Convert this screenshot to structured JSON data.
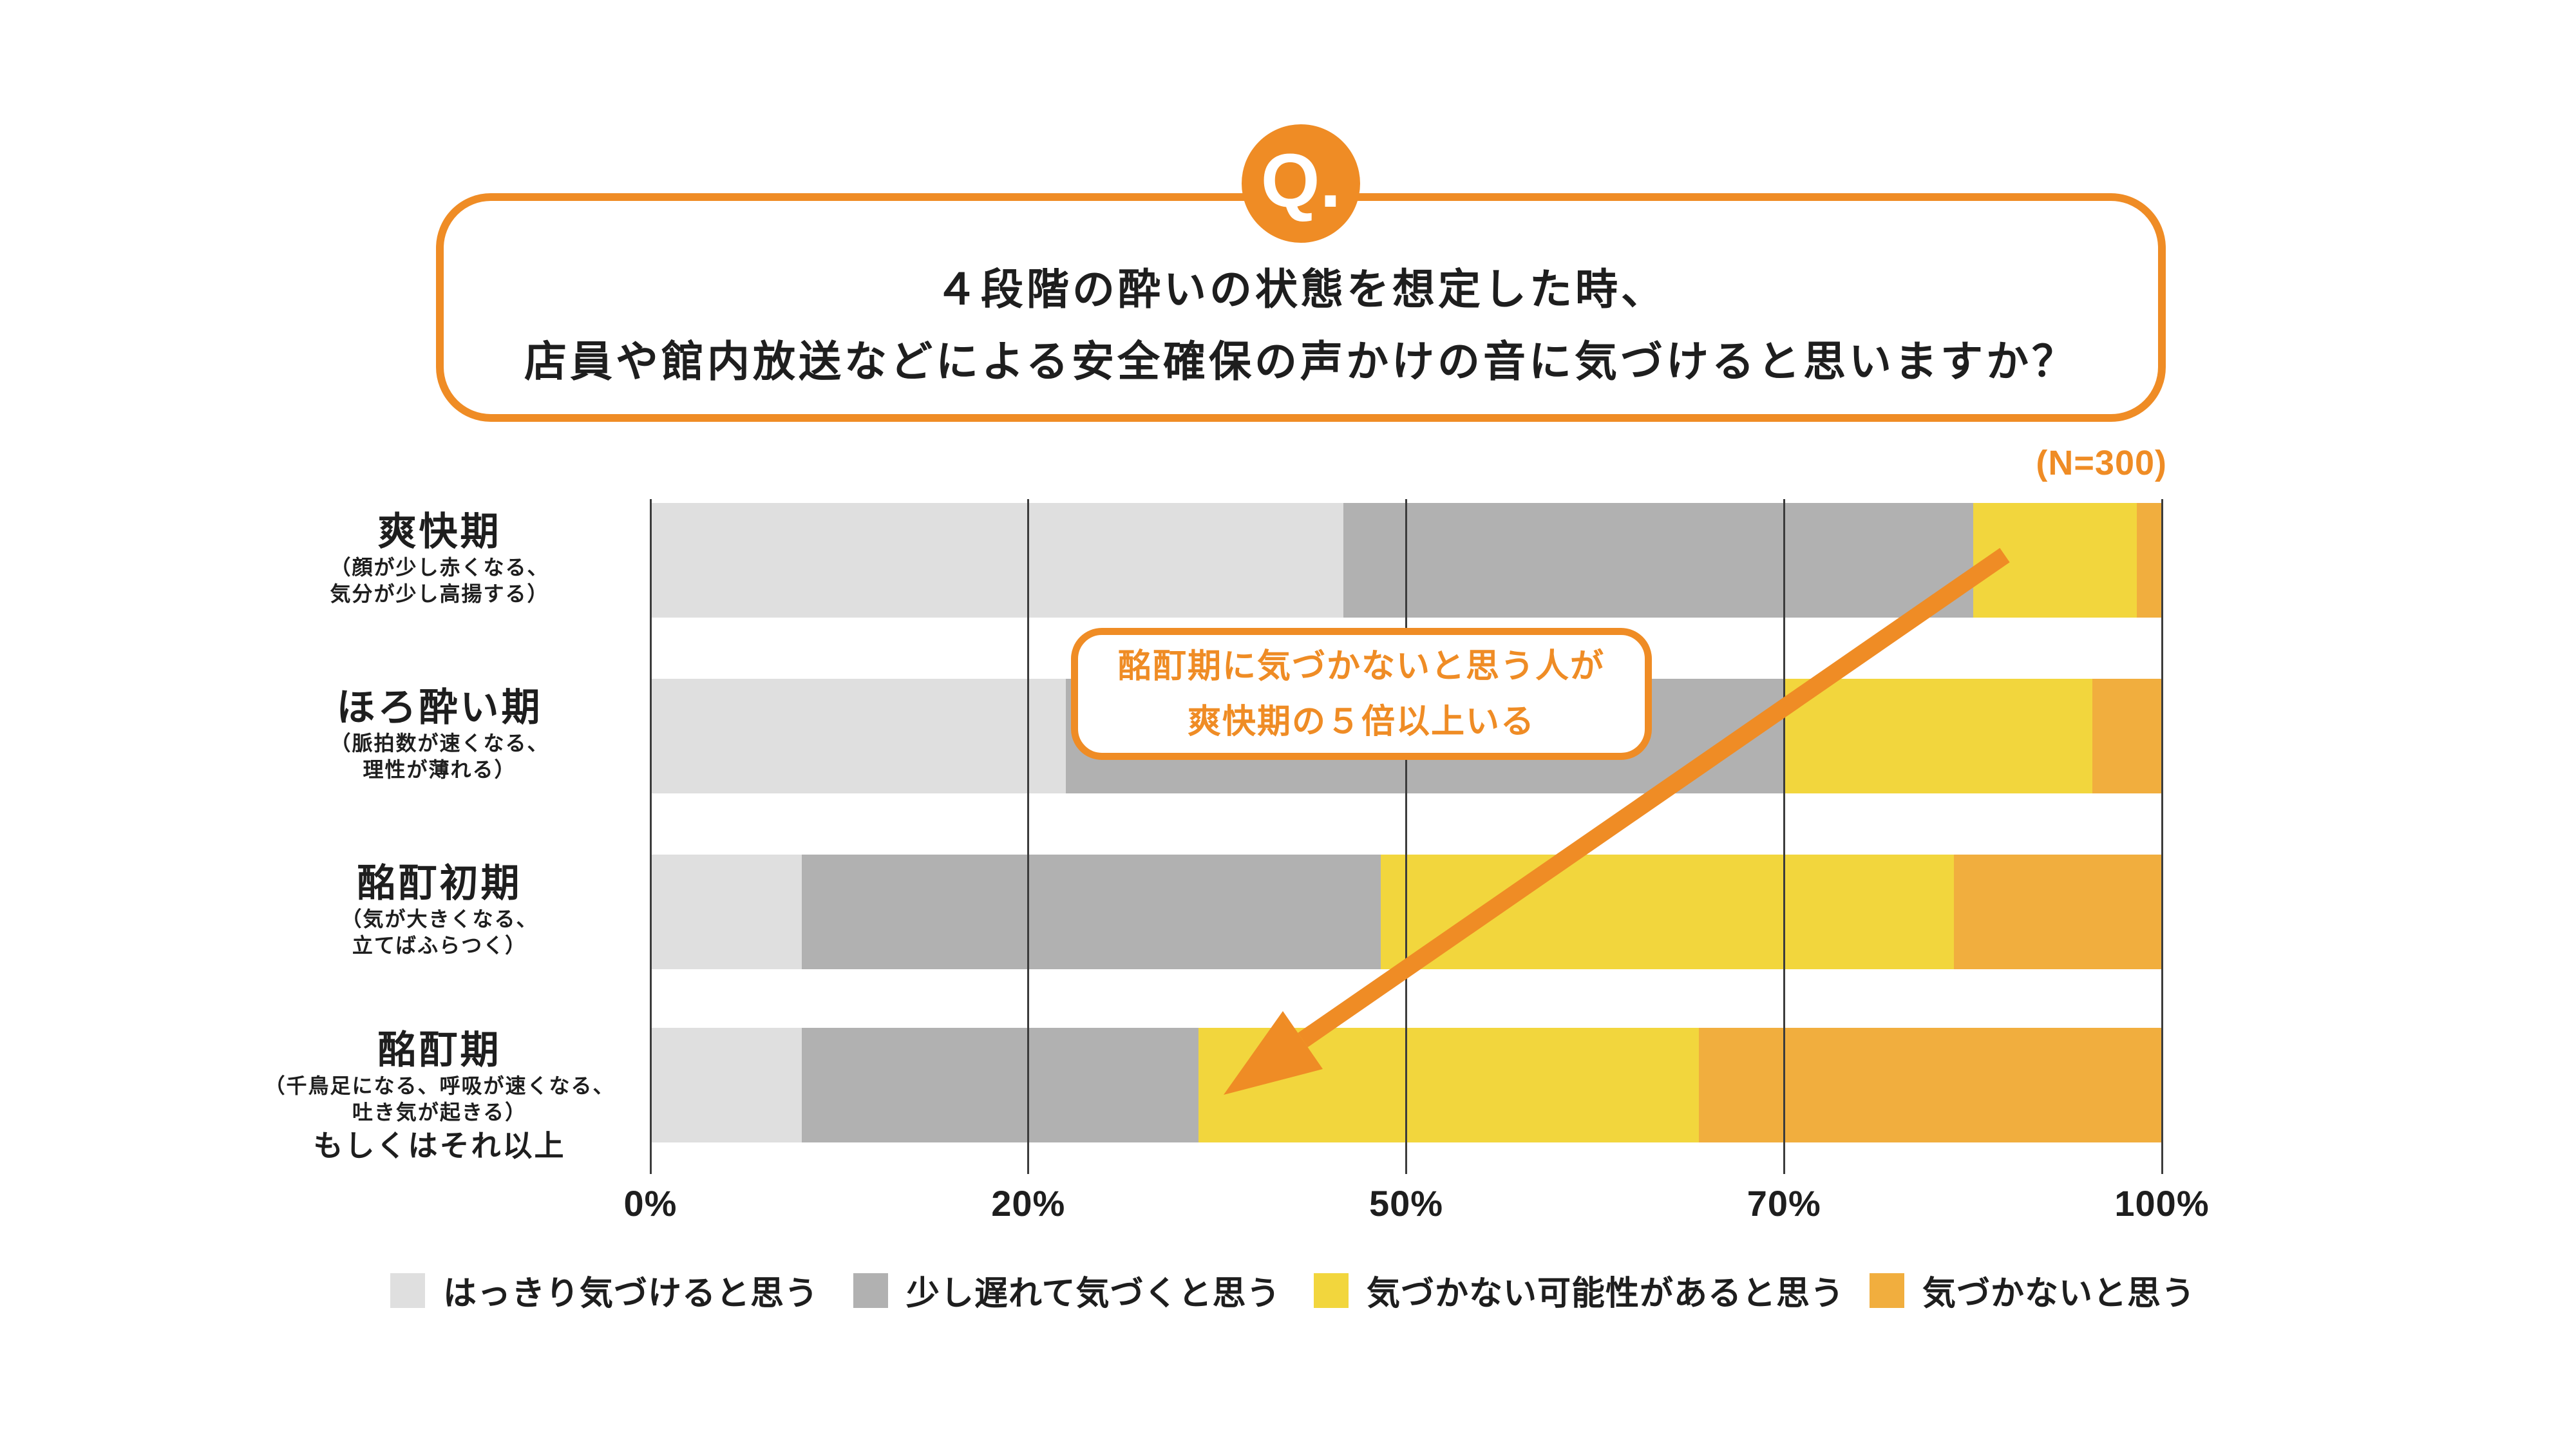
{
  "accent_color": "#EF8C25",
  "question": {
    "badge": "Q.",
    "line1": "４段階の酔いの状態を想定した時、",
    "line2": "店員や館内放送などによる安全確保の声かけの音に気づけると思いますか？"
  },
  "sample_size": "(N=300)",
  "annotation": {
    "line1": "酩酊期に気づかないと思う人が",
    "line2": "爽快期の５倍以上いる"
  },
  "chart_data": {
    "type": "bar",
    "orientation": "horizontal",
    "stacked": true,
    "grid": "vertical lines at ticks, drawn over bars",
    "axis": {
      "ticks": [
        0,
        20,
        50,
        70,
        100
      ],
      "tick_labels": [
        "0%",
        "20%",
        "50%",
        "70%",
        "100%"
      ],
      "note": "tick marks are evenly spaced although values are non-uniform"
    },
    "categories": [
      {
        "label": "爽快期",
        "sub": [
          "（顔が少し赤くなる、",
          "気分が少し高揚する）"
        ],
        "extra": ""
      },
      {
        "label": "ほろ酔い期",
        "sub": [
          "（脈拍数が速くなる、",
          "理性が薄れる）"
        ],
        "extra": ""
      },
      {
        "label": "酩酊初期",
        "sub": [
          "（気が大きくなる、",
          "立てばふらつく）"
        ],
        "extra": ""
      },
      {
        "label": "酩酊期",
        "sub": [
          "（千鳥足になる、呼吸が速くなる、",
          "吐き気が起きる）"
        ],
        "extra": "もしくはそれ以上"
      }
    ],
    "series": [
      {
        "name": "はっきり気づけると思う",
        "color_key": "light_gray",
        "color": "#DFDFDF",
        "values": [
          45,
          23,
          8,
          8
        ]
      },
      {
        "name": "少し遅れて気づくと思う",
        "color_key": "dark_gray",
        "color": "#B1B1B1",
        "values": [
          40,
          47,
          40,
          25.5
        ]
      },
      {
        "name": "気づかない可能性があると思う",
        "color_key": "yellow",
        "color": "#F2D63D",
        "values": [
          13,
          24.5,
          35.5,
          32
        ]
      },
      {
        "name": "気づかないと思う",
        "color_key": "orange",
        "color": "#F1AE3E",
        "values": [
          2,
          5.5,
          16.5,
          34.5
        ]
      }
    ],
    "legend_position": "bottom"
  }
}
